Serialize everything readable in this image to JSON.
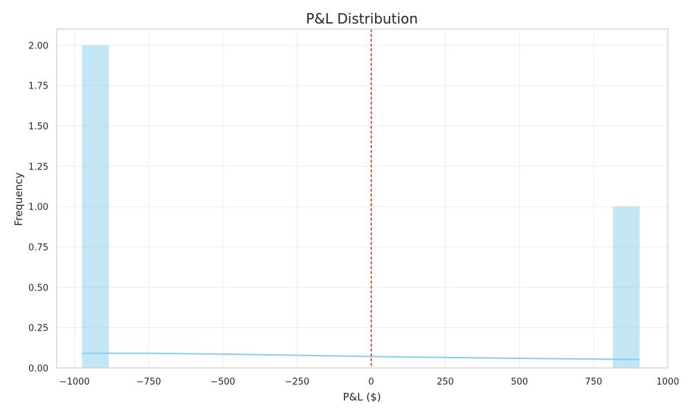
{
  "chart_data": {
    "type": "bar",
    "title": "P&L Distribution",
    "xlabel": "P&L ($)",
    "ylabel": "Frequency",
    "xlim": [
      -1060,
      1000
    ],
    "ylim": [
      0,
      2.1
    ],
    "xticks": [
      -1000,
      -750,
      -500,
      -250,
      0,
      250,
      500,
      750,
      1000
    ],
    "xtick_labels": [
      "−1000",
      "−750",
      "−500",
      "−250",
      "0",
      "250",
      "500",
      "750",
      "1000"
    ],
    "yticks": [
      0,
      0.25,
      0.5,
      0.75,
      1.0,
      1.25,
      1.5,
      1.75,
      2.0
    ],
    "ytick_labels": [
      "0.00",
      "0.25",
      "0.50",
      "0.75",
      "1.00",
      "1.25",
      "1.50",
      "1.75",
      "2.00"
    ],
    "grid": true,
    "bars": [
      {
        "x0": -975,
        "x1": -885,
        "value": 2
      },
      {
        "x0": 815,
        "x1": 905,
        "value": 1
      }
    ],
    "kde_line": {
      "x": [
        -975,
        -750,
        -500,
        -250,
        0,
        250,
        500,
        750,
        905
      ],
      "y": [
        0.091,
        0.091,
        0.086,
        0.079,
        0.071,
        0.065,
        0.06,
        0.055,
        0.052
      ]
    },
    "reference_line": {
      "x": 0,
      "style": "dashed"
    },
    "colors": {
      "bar_fill": "#87ceeb",
      "kde_line": "#87ceeb",
      "reference_line": "#cc0000",
      "grid": "#ebebeb",
      "frame": "#cccccc",
      "text": "#262626"
    }
  }
}
